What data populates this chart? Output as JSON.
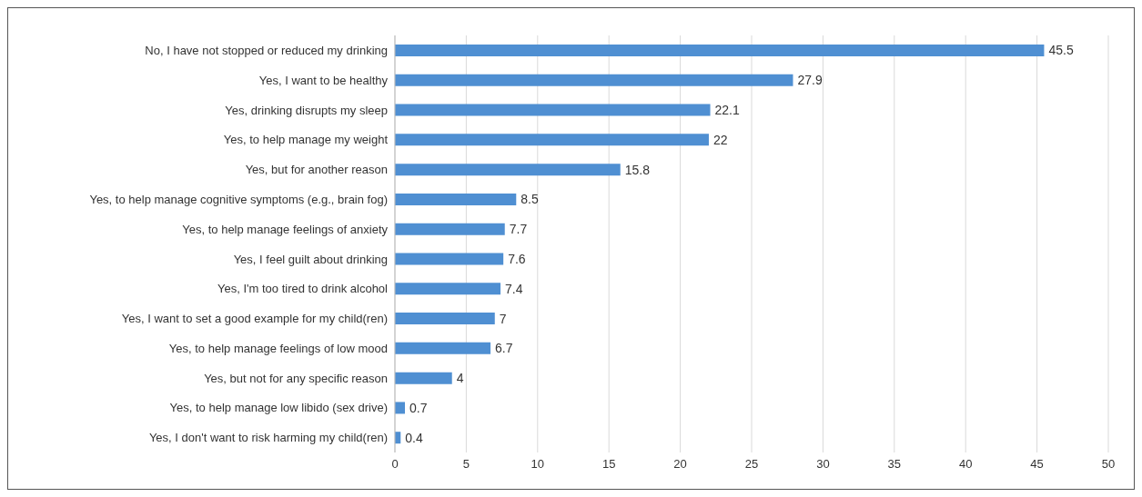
{
  "chart_data": {
    "type": "bar",
    "orientation": "horizontal",
    "categories": [
      "No, I have not stopped or reduced my drinking",
      "Yes,  I want to be healthy",
      "Yes, drinking disrupts my sleep",
      "Yes, to help manage my weight",
      "Yes, but for another reason",
      "Yes, to help manage cognitive symptoms (e.g., brain fog)",
      "Yes, to help manage feelings of anxiety",
      "Yes, I feel guilt about drinking",
      "Yes, I'm too tired to drink alcohol",
      "Yes, I want to set a good example for my child(ren)",
      "Yes, to help manage feelings of low mood",
      "Yes, but not for any specific reason",
      "Yes, to help manage low libido (sex drive)",
      "Yes, I don't want to risk harming my child(ren)"
    ],
    "values": [
      45.5,
      27.9,
      22.1,
      22,
      15.8,
      8.5,
      7.7,
      7.6,
      7.4,
      7,
      6.7,
      4,
      0.7,
      0.4
    ],
    "color": "#4f8fd2",
    "xlim": [
      0,
      50
    ],
    "xticks": [
      0,
      5,
      10,
      15,
      20,
      25,
      30,
      35,
      40,
      45,
      50
    ],
    "grid": "x",
    "data_labels": true
  }
}
